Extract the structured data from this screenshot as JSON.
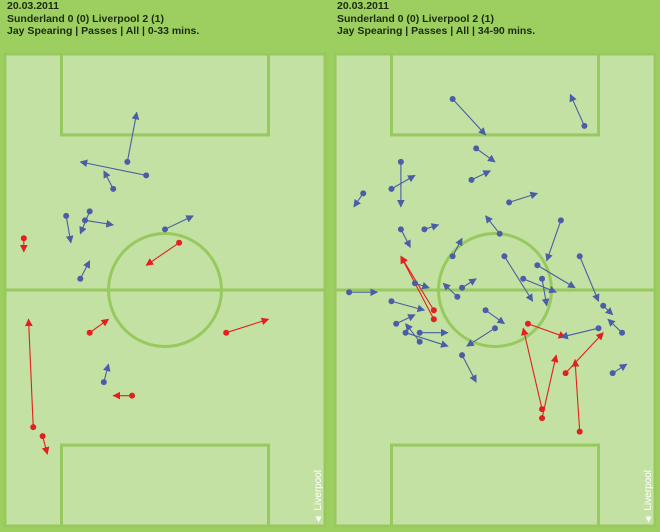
{
  "panels": [
    {
      "date": "20.03.2011",
      "match": "Sunderland 0 (0) Liverpool 2 (1)",
      "filter": "Jay Spearing | Passes | All | 0-33 mins.",
      "team_tag": "▲ Liverpool",
      "passes": [
        {
          "from": [
            47,
            62
          ],
          "to": [
            56,
            59
          ],
          "outcome": "failed"
        },
        {
          "from": [
            18,
            62
          ],
          "to": [
            22,
            59
          ],
          "outcome": "failed"
        },
        {
          "from": [
            27,
            76
          ],
          "to": [
            23,
            76
          ],
          "outcome": "failed"
        },
        {
          "from": [
            37,
            42
          ],
          "to": [
            30,
            47
          ],
          "outcome": "failed"
        },
        {
          "from": [
            4,
            41
          ],
          "to": [
            4,
            44
          ],
          "outcome": "failed"
        },
        {
          "from": [
            6,
            83
          ],
          "to": [
            5,
            59
          ],
          "outcome": "failed"
        },
        {
          "from": [
            8,
            85
          ],
          "to": [
            9,
            89
          ],
          "outcome": "failed"
        },
        {
          "from": [
            16,
            50
          ],
          "to": [
            18,
            46
          ],
          "outcome": "complete"
        },
        {
          "from": [
            18,
            35
          ],
          "to": [
            16,
            40
          ],
          "outcome": "complete"
        },
        {
          "from": [
            34,
            39
          ],
          "to": [
            40,
            36
          ],
          "outcome": "complete"
        },
        {
          "from": [
            21,
            73
          ],
          "to": [
            22,
            69
          ],
          "outcome": "complete"
        },
        {
          "from": [
            30,
            27
          ],
          "to": [
            16,
            24
          ],
          "outcome": "complete"
        },
        {
          "from": [
            17,
            37
          ],
          "to": [
            23,
            38
          ],
          "outcome": "complete"
        },
        {
          "from": [
            26,
            24
          ],
          "to": [
            28,
            13
          ],
          "outcome": "complete"
        },
        {
          "from": [
            23,
            30
          ],
          "to": [
            21,
            26
          ],
          "outcome": "complete"
        },
        {
          "from": [
            13,
            36
          ],
          "to": [
            14,
            42
          ],
          "outcome": "complete"
        }
      ]
    },
    {
      "date": "20.03.2011",
      "match": "Sunderland 0 (0) Liverpool 2 (1)",
      "filter": "Jay Spearing | Passes | All | 34-90 mins.",
      "team_tag": "▲ Liverpool",
      "passes": [
        {
          "from": [
            41,
            60
          ],
          "to": [
            49,
            63
          ],
          "outcome": "failed"
        },
        {
          "from": [
            21,
            57
          ],
          "to": [
            14,
            45
          ],
          "outcome": "failed"
        },
        {
          "from": [
            21,
            59
          ],
          "to": [
            14,
            45
          ],
          "outcome": "failed"
        },
        {
          "from": [
            44,
            79
          ],
          "to": [
            40,
            61
          ],
          "outcome": "failed"
        },
        {
          "from": [
            49,
            71
          ],
          "to": [
            57,
            62
          ],
          "outcome": "failed"
        },
        {
          "from": [
            44,
            81
          ],
          "to": [
            47,
            67
          ],
          "outcome": "failed"
        },
        {
          "from": [
            52,
            84
          ],
          "to": [
            51,
            68
          ],
          "outcome": "failed"
        },
        {
          "from": [
            48,
            37
          ],
          "to": [
            45,
            46
          ],
          "outcome": "complete"
        },
        {
          "from": [
            53,
            16
          ],
          "to": [
            50,
            9
          ],
          "outcome": "complete"
        },
        {
          "from": [
            30,
            21
          ],
          "to": [
            34,
            24
          ],
          "outcome": "complete"
        },
        {
          "from": [
            14,
            24
          ],
          "to": [
            14,
            34
          ],
          "outcome": "complete"
        },
        {
          "from": [
            6,
            31
          ],
          "to": [
            4,
            34
          ],
          "outcome": "complete"
        },
        {
          "from": [
            29,
            28
          ],
          "to": [
            33,
            26
          ],
          "outcome": "complete"
        },
        {
          "from": [
            12,
            30
          ],
          "to": [
            17,
            27
          ],
          "outcome": "complete"
        },
        {
          "from": [
            37,
            33
          ],
          "to": [
            43,
            31
          ],
          "outcome": "complete"
        },
        {
          "from": [
            25,
            10
          ],
          "to": [
            32,
            18
          ],
          "outcome": "complete"
        },
        {
          "from": [
            14,
            39
          ],
          "to": [
            16,
            43
          ],
          "outcome": "complete"
        },
        {
          "from": [
            35,
            40
          ],
          "to": [
            32,
            36
          ],
          "outcome": "complete"
        },
        {
          "from": [
            25,
            45
          ],
          "to": [
            27,
            41
          ],
          "outcome": "complete"
        },
        {
          "from": [
            17,
            51
          ],
          "to": [
            20,
            52
          ],
          "outcome": "complete"
        },
        {
          "from": [
            12,
            55
          ],
          "to": [
            19,
            57
          ],
          "outcome": "complete"
        },
        {
          "from": [
            13,
            60
          ],
          "to": [
            17,
            58
          ],
          "outcome": "complete"
        },
        {
          "from": [
            15,
            62
          ],
          "to": [
            24,
            65
          ],
          "outcome": "complete"
        },
        {
          "from": [
            3,
            53
          ],
          "to": [
            9,
            53
          ],
          "outcome": "complete"
        },
        {
          "from": [
            27,
            67
          ],
          "to": [
            30,
            73
          ],
          "outcome": "complete"
        },
        {
          "from": [
            36,
            45
          ],
          "to": [
            42,
            55
          ],
          "outcome": "complete"
        },
        {
          "from": [
            43,
            47
          ],
          "to": [
            51,
            52
          ],
          "outcome": "complete"
        },
        {
          "from": [
            40,
            50
          ],
          "to": [
            47,
            53
          ],
          "outcome": "complete"
        },
        {
          "from": [
            57,
            56
          ],
          "to": [
            59,
            58
          ],
          "outcome": "complete"
        },
        {
          "from": [
            56,
            61
          ],
          "to": [
            48,
            63
          ],
          "outcome": "complete"
        },
        {
          "from": [
            59,
            71
          ],
          "to": [
            62,
            69
          ],
          "outcome": "complete"
        },
        {
          "from": [
            61,
            62
          ],
          "to": [
            58,
            59
          ],
          "outcome": "complete"
        },
        {
          "from": [
            34,
            61
          ],
          "to": [
            28,
            65
          ],
          "outcome": "complete"
        },
        {
          "from": [
            18,
            64
          ],
          "to": [
            15,
            60
          ],
          "outcome": "complete"
        },
        {
          "from": [
            32,
            57
          ],
          "to": [
            36,
            60
          ],
          "outcome": "complete"
        },
        {
          "from": [
            26,
            54
          ],
          "to": [
            23,
            51
          ],
          "outcome": "complete"
        },
        {
          "from": [
            19,
            39
          ],
          "to": [
            22,
            38
          ],
          "outcome": "complete"
        },
        {
          "from": [
            18,
            62
          ],
          "to": [
            24,
            62
          ],
          "outcome": "complete"
        },
        {
          "from": [
            27,
            52
          ],
          "to": [
            30,
            50
          ],
          "outcome": "complete"
        },
        {
          "from": [
            44,
            50
          ],
          "to": [
            45,
            56
          ],
          "outcome": "complete"
        },
        {
          "from": [
            52,
            45
          ],
          "to": [
            56,
            55
          ],
          "outcome": "complete"
        }
      ]
    }
  ],
  "colors": {
    "panel_bg": "#9ccf5f",
    "pitch_fill": "#c3e1a2",
    "pitch_line": "#97c95f",
    "complete": "#4a5da6",
    "failed": "#e31f1f"
  }
}
